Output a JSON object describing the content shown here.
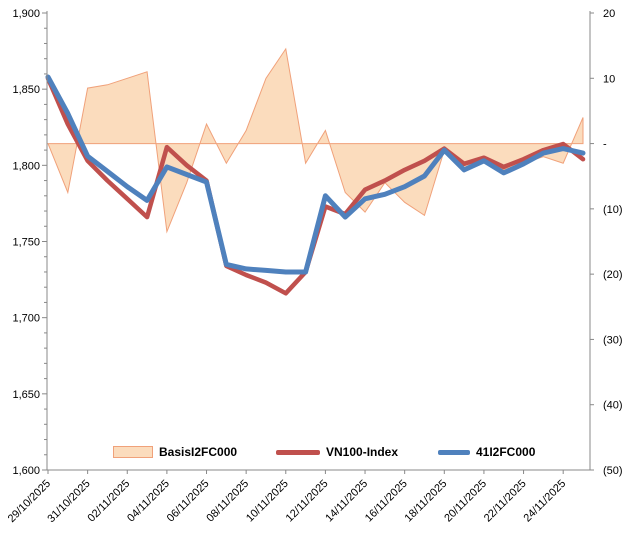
{
  "chart_data": {
    "type": "area+line combo",
    "title": "",
    "grid": false,
    "legend_position": "bottom-inside",
    "x_tick_labels": [
      "29/10/2025",
      "31/10/2025",
      "02/11/2025",
      "04/11/2025",
      "06/11/2025",
      "08/11/2025",
      "10/11/2025",
      "12/11/2025",
      "14/11/2025",
      "16/11/2025",
      "18/11/2025",
      "20/11/2025",
      "22/11/2025",
      "24/11/2025"
    ],
    "x_all_points": [
      "29/10/2025",
      "30/10/2025",
      "31/10/2025",
      "01/11/2025",
      "02/11/2025",
      "03/11/2025",
      "04/11/2025",
      "05/11/2025",
      "06/11/2025",
      "07/11/2025",
      "08/11/2025",
      "09/11/2025",
      "10/11/2025",
      "11/11/2025",
      "12/11/2025",
      "13/11/2025",
      "14/11/2025",
      "15/11/2025",
      "16/11/2025",
      "17/11/2025",
      "18/11/2025",
      "19/11/2025",
      "20/11/2025",
      "21/11/2025",
      "22/11/2025",
      "23/11/2025",
      "24/11/2025",
      "25/11/2025"
    ],
    "left_axis": {
      "min": 1600,
      "max": 1900,
      "tick_step": 50,
      "minor_tick_step": 10,
      "tick_labels": [
        "1,900",
        "1,850",
        "1,800",
        "1,750",
        "1,700",
        "1,650",
        "1,600"
      ]
    },
    "right_axis": {
      "min": -50,
      "max": 20,
      "tick_step": 10,
      "tick_labels": [
        "20",
        "10",
        "-",
        "(10)",
        "(20)",
        "(30)",
        "(40)",
        "(50)"
      ],
      "tick_values": [
        20,
        10,
        0,
        -10,
        -20,
        -30,
        -40,
        -50
      ]
    },
    "series": [
      {
        "name": "BasisI2FC000",
        "type": "area",
        "axis": "right",
        "fill": "#FBDCBD",
        "stroke": "#F0A17A",
        "values": [
          0,
          -7.5,
          8.5,
          9,
          10,
          11,
          -13.5,
          -6,
          3,
          -3,
          2,
          10,
          14.5,
          -3,
          2,
          -7.5,
          -10.5,
          -6,
          -9,
          -11,
          -1,
          -4,
          -2,
          -4,
          -3,
          -2,
          -3,
          4
        ]
      },
      {
        "name": "VN100-Index",
        "type": "line",
        "axis": "left",
        "color": "#C0504D",
        "width": 4.5,
        "values": [
          1857,
          1827,
          1803,
          1790,
          1778,
          1766,
          1812,
          1800,
          1790,
          1734,
          1728,
          1723,
          1716,
          1730,
          1773,
          1768,
          1784,
          1790,
          1797,
          1803,
          1811,
          1801,
          1805,
          1799,
          1804,
          1810,
          1814,
          1804
        ]
      },
      {
        "name": "41I2FC000",
        "type": "line",
        "axis": "left",
        "color": "#4F81BD",
        "width": 5,
        "values": [
          1858,
          1834,
          1806,
          1796,
          1786,
          1777,
          1799,
          1794,
          1789,
          1735,
          1732,
          1731,
          1730,
          1730,
          1780,
          1766,
          1778,
          1781,
          1786,
          1793,
          1810,
          1797,
          1803,
          1795,
          1801,
          1808,
          1811,
          1808
        ]
      }
    ],
    "legend": [
      {
        "label": "BasisI2FC000",
        "swatch": "area"
      },
      {
        "label": "VN100-Index",
        "swatch": "red-line"
      },
      {
        "label": "41I2FC000",
        "swatch": "blue-line"
      }
    ],
    "colors": {
      "area_fill": "#FBDCBD",
      "area_stroke": "#F0A17A",
      "vn100": "#C0504D",
      "futures": "#4F81BD",
      "axis": "#888888",
      "text": "#000000"
    }
  }
}
